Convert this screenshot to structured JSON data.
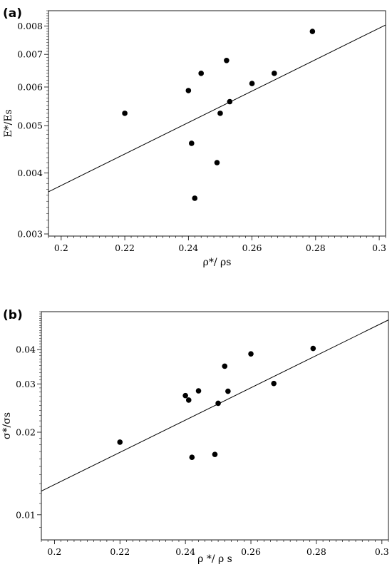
{
  "chart_data": [
    {
      "panel_label": "(a)",
      "type": "scatter",
      "xlabel": "ρ*/ ρs",
      "ylabel": "E*/Es",
      "yscale": "log",
      "xlim": [
        0.196,
        0.302
      ],
      "ylim": [
        0.00297,
        0.0086
      ],
      "xticks": [
        0.2,
        0.22,
        0.24,
        0.26,
        0.28,
        0.3
      ],
      "yticks": [
        0.003,
        0.004,
        0.005,
        0.006,
        0.007,
        0.008
      ],
      "grid": false,
      "x": [
        0.22,
        0.24,
        0.241,
        0.242,
        0.244,
        0.249,
        0.25,
        0.252,
        0.253,
        0.26,
        0.267,
        0.279
      ],
      "y": [
        0.0053,
        0.0059,
        0.0046,
        0.00355,
        0.0064,
        0.0042,
        0.0053,
        0.0068,
        0.0056,
        0.0061,
        0.0064,
        0.0078
      ],
      "fit_line": {
        "x": [
          0.196,
          0.302
        ],
        "y": [
          0.00366,
          0.00804
        ]
      }
    },
    {
      "panel_label": "(b)",
      "type": "scatter",
      "xlabel": "ρ */ ρ s",
      "ylabel": "σ*/σs",
      "yscale": "log",
      "xlim": [
        0.196,
        0.302
      ],
      "ylim": [
        0.0081,
        0.055
      ],
      "xticks": [
        0.2,
        0.22,
        0.24,
        0.26,
        0.28,
        0.3
      ],
      "yticks": [
        0.01,
        0.02,
        0.03,
        0.04
      ],
      "grid": false,
      "x": [
        0.22,
        0.24,
        0.241,
        0.242,
        0.244,
        0.249,
        0.25,
        0.252,
        0.253,
        0.26,
        0.267,
        0.279
      ],
      "y": [
        0.0184,
        0.0272,
        0.0262,
        0.0162,
        0.0283,
        0.0166,
        0.0255,
        0.0348,
        0.0282,
        0.0386,
        0.0301,
        0.0404
      ],
      "fit_line": {
        "x": [
          0.196,
          0.302
        ],
        "y": [
          0.0122,
          0.0513
        ]
      }
    }
  ]
}
